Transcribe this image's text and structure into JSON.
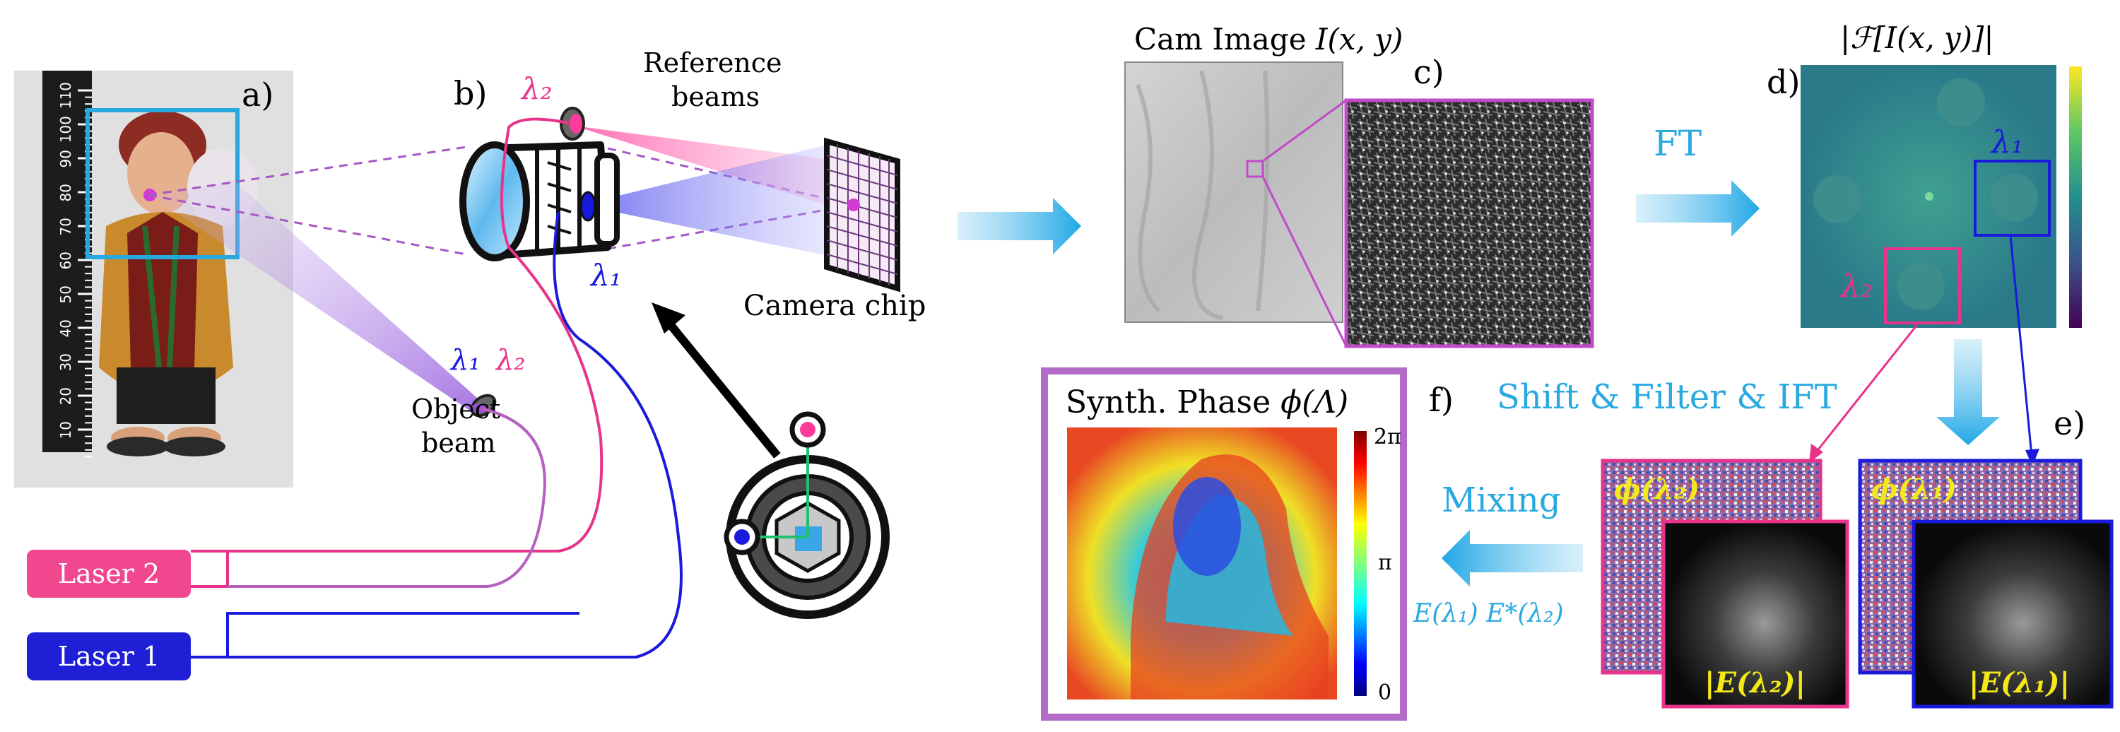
{
  "panels": {
    "a": "a)",
    "b": "b)",
    "c": "c)",
    "d": "d)",
    "e": "e)",
    "f": "f)"
  },
  "labels": {
    "reference_beams_1": "Reference",
    "reference_beams_2": "beams",
    "camera_chip": "Camera chip",
    "object_beam_1": "Object",
    "object_beam_2": "beam",
    "laser2": "Laser 2",
    "laser1": "Laser 1",
    "cam_image_prefix": "Cam Image ",
    "cam_image_math": "I(x, y)",
    "fourier_title": "|ℱ[I(x, y)]|",
    "ft": "FT",
    "shift_filter_ift": "Shift & Filter & IFT",
    "mixing": "Mixing",
    "mixing_formula": "E(λ₁) E*(λ₂)",
    "synth_phase_prefix": "Synth. Phase ",
    "synth_phase_math": "ϕ(Λ)",
    "lambda1": "λ₁",
    "lambda2": "λ₂",
    "phi_l2": "ϕ(λ₂)",
    "phi_l1": "ϕ(λ₁)",
    "abs_e_l2": "|E(λ₂)|",
    "abs_e_l1": "|E(λ₁)|",
    "cbar_top": "2π",
    "cbar_mid": "π",
    "cbar_bottom": "0"
  },
  "ruler_ticks": [
    "110",
    "100",
    "90",
    "80",
    "70",
    "60",
    "50",
    "40",
    "30",
    "20",
    "10"
  ],
  "colors": {
    "lambda1_blue": "#1a1adc",
    "lambda2_pink": "#e8338a",
    "arrow_cyan": "#27aee8",
    "text_cyan": "#2aa9e0",
    "box_cyan": "#29a8e0",
    "phase_frame": "#b36bc8",
    "laser2_fill": "#f0478f",
    "laser1_fill": "#1f1fd6",
    "label_yellow": "#f3e81a"
  }
}
